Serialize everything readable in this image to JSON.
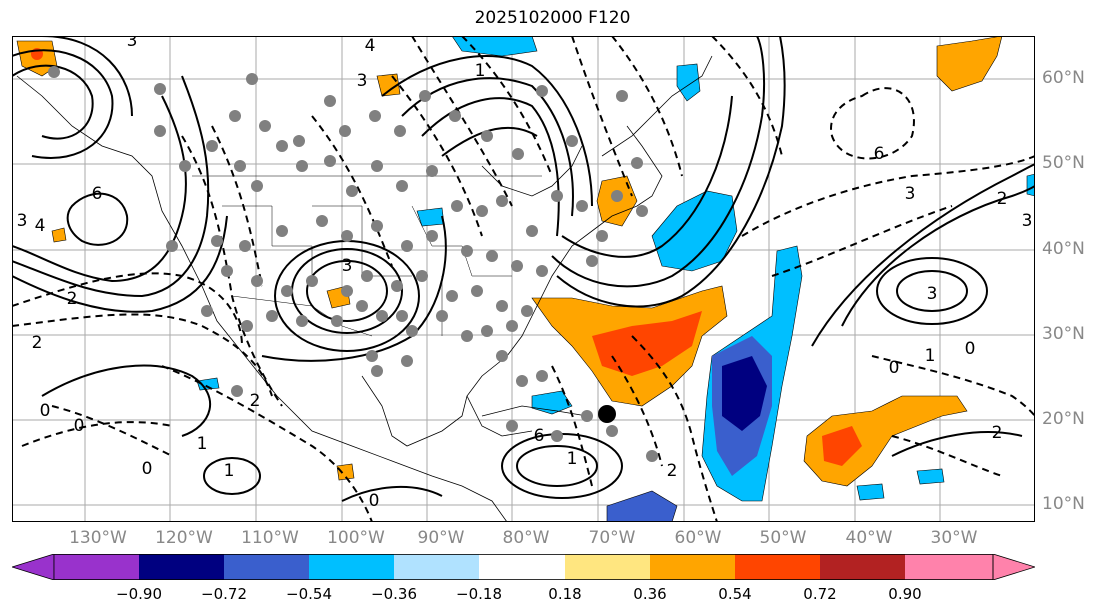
{
  "title": "2025102000 F120",
  "lon_labels": [
    "130°W",
    "120°W",
    "110°W",
    "100°W",
    "90°W",
    "80°W",
    "70°W",
    "60°W",
    "50°W",
    "40°W",
    "30°W"
  ],
  "lat_labels": [
    "60°N",
    "50°N",
    "40°N",
    "30°N",
    "20°N",
    "10°N"
  ],
  "colorbar": {
    "colors": [
      "#9932cc",
      "#000080",
      "#3a5fcd",
      "#00bfff",
      "#b0e2ff",
      "#ffffff",
      "#ffe680",
      "#ffa500",
      "#ff4500",
      "#b22222",
      "#ff82ab"
    ],
    "tick_labels": [
      "−0.90",
      "−0.72",
      "−0.54",
      "−0.36",
      "−0.18",
      "0.18",
      "0.36",
      "0.54",
      "0.72",
      "0.90"
    ]
  },
  "contour_labels": {
    "nw_low": "3",
    "nw_high": "6",
    "west_labels": [
      "3",
      "4",
      "2",
      "2",
      "0",
      "0",
      "1",
      "1",
      "0"
    ],
    "center_low": "3",
    "north_labels": [
      "4",
      "3",
      "1"
    ],
    "gulf_labels": [
      "2",
      "0",
      "1",
      "6"
    ],
    "atlantic_labels": [
      "6",
      "3",
      "3",
      "2",
      "3",
      "1",
      "0",
      "0",
      "2",
      "2"
    ]
  }
}
